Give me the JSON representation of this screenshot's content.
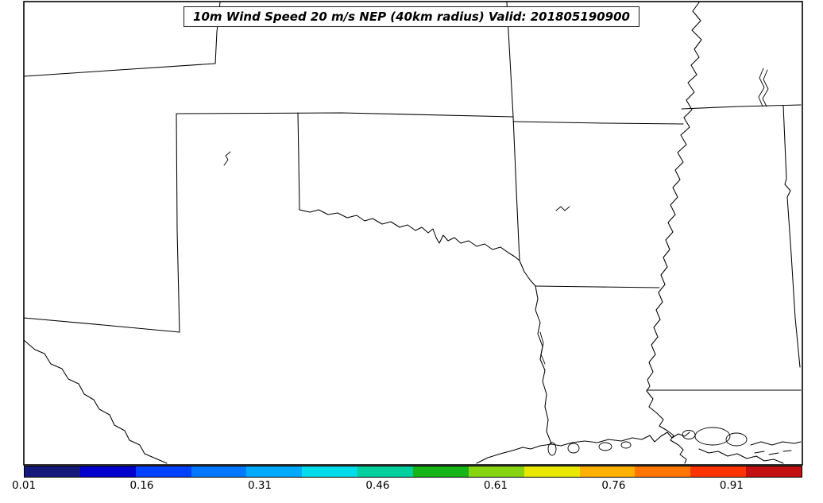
{
  "chart_data": {
    "type": "heatmap",
    "title": "10m Wind Speed 20 m/s NEP (40km radius) Valid: 201805190900",
    "field": "10m Wind Speed 20 m/s NEP (40km radius)",
    "valid": "201805190900",
    "map_region": "South-central United States (Texas, Oklahoma, Kansas, Missouri, Arkansas, Louisiana, Mississippi)",
    "values_plotted": "no probability shading visible in domain (all values below lowest contour 0.01)",
    "colorbar": {
      "orientation": "horizontal",
      "tick_labels": [
        "0.01",
        "0.16",
        "0.31",
        "0.46",
        "0.61",
        "0.76",
        "0.91"
      ],
      "tick_values": [
        0.01,
        0.16,
        0.31,
        0.46,
        0.61,
        0.76,
        0.91
      ],
      "range": [
        0.01,
        1.0
      ],
      "colors": [
        "#151a7a",
        "#0000cd",
        "#0040ff",
        "#0077ff",
        "#00aaff",
        "#00dce8",
        "#00cfa0",
        "#16b616",
        "#86d412",
        "#e8e800",
        "#ffb000",
        "#ff7700",
        "#ff3300",
        "#c31010"
      ]
    }
  }
}
